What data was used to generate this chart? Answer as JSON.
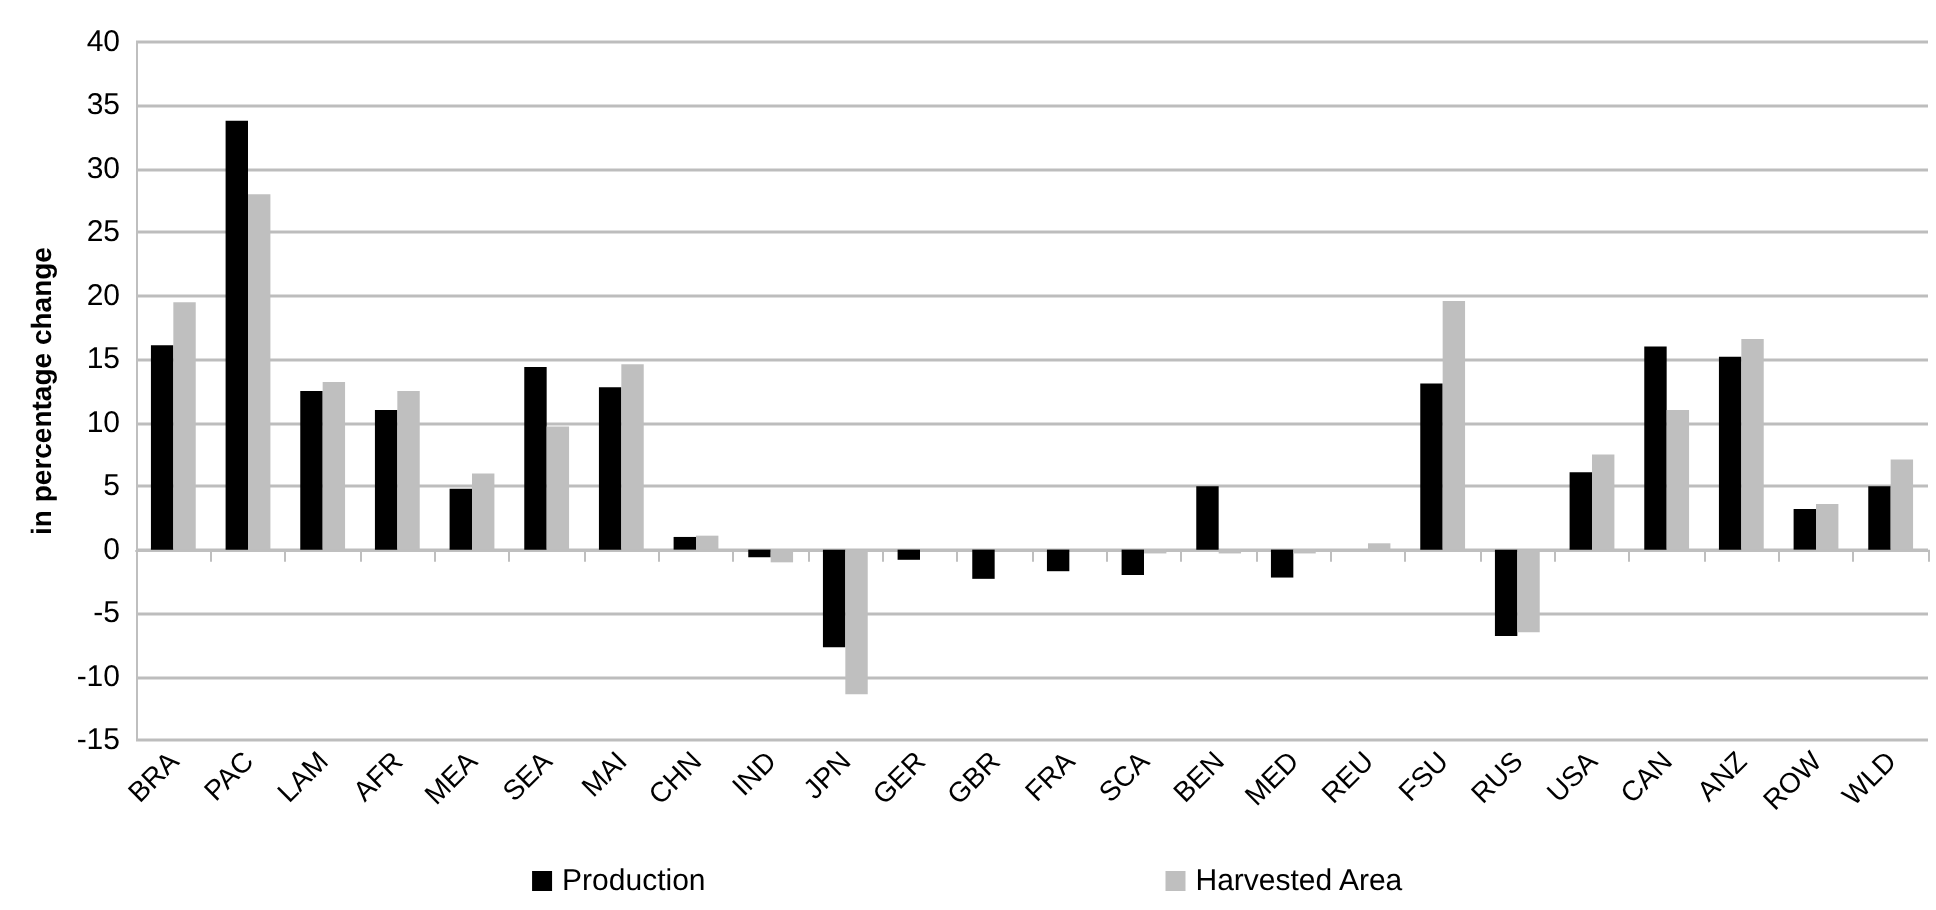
{
  "chart_data": {
    "type": "bar",
    "ylabel": "in percentage change",
    "categories": [
      "BRA",
      "PAC",
      "LAM",
      "AFR",
      "MEA",
      "SEA",
      "MAI",
      "CHN",
      "IND",
      "JPN",
      "GER",
      "GBR",
      "FRA",
      "SCA",
      "BEN",
      "MED",
      "REU",
      "FSU",
      "RUS",
      "USA",
      "CAN",
      "ANZ",
      "ROW",
      "WLD"
    ],
    "series": [
      {
        "name": "Production",
        "color": "#000000",
        "values": [
          16.1,
          33.8,
          12.5,
          11,
          4.8,
          14.4,
          12.8,
          1,
          -0.6,
          -7.7,
          -0.8,
          -2.3,
          -1.7,
          -2,
          5,
          -2.2,
          0,
          13.1,
          -6.8,
          6.1,
          16,
          15.2,
          3.2,
          5
        ]
      },
      {
        "name": "Harvested Area",
        "color": "#bfbfbf",
        "values": [
          19.5,
          28,
          13.2,
          12.5,
          6,
          9.7,
          14.6,
          1.1,
          -1,
          -11.4,
          null,
          null,
          null,
          -0.3,
          -0.3,
          -0.3,
          0.5,
          19.6,
          -6.5,
          7.5,
          11,
          16.6,
          3.6,
          7.1
        ]
      }
    ],
    "ylim": [
      -15,
      40
    ],
    "yticks": [
      -15,
      -10,
      -5,
      0,
      5,
      10,
      15,
      20,
      25,
      30,
      35,
      40
    ],
    "grid": "y",
    "legend": "bottom"
  }
}
